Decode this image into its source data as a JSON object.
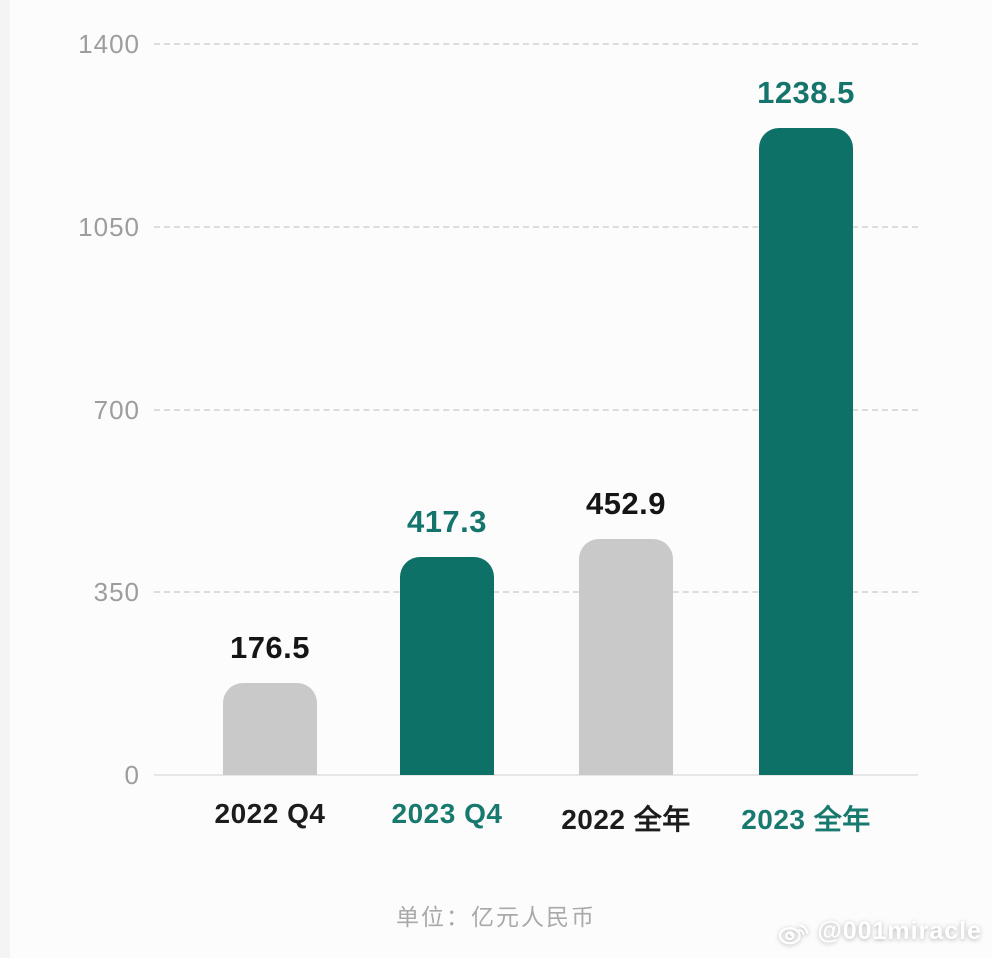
{
  "chart_data": {
    "type": "bar",
    "title": "",
    "categories": [
      "2022 Q4",
      "2023 Q4",
      "2022 全年",
      "2023 全年"
    ],
    "values": [
      176.5,
      417.3,
      452.9,
      1238.5
    ],
    "value_labels": [
      "176.5",
      "417.3",
      "452.9",
      "1238.5"
    ],
    "bar_colors": [
      "#c9c9c9",
      "#0e7168",
      "#c9c9c9",
      "#0e7168"
    ],
    "value_label_colors": [
      "#151515",
      "#15756c",
      "#151515",
      "#15756c"
    ],
    "category_label_colors": [
      "#1c1c1c",
      "#18796f",
      "#1c1c1c",
      "#18796f"
    ],
    "xlabel": "",
    "ylabel": "",
    "ylim": [
      0,
      1400
    ],
    "yticks": [
      "0",
      "350",
      "700",
      "1050",
      "1400"
    ],
    "ytick_values": [
      0,
      350,
      700,
      1050,
      1400
    ],
    "grid": "horizontal dashed, baseline solid",
    "legend": "none",
    "footnote": "单位：亿元人民币"
  },
  "colors": {
    "teal_bar": "#0e7168",
    "gray_bar": "#c9c9c9",
    "axis_text": "#9d9d9d",
    "gridline": "#dcdcdc",
    "footnote_text": "#a9a9a9",
    "background": "#fcfcfc"
  },
  "watermark": {
    "handle": "@001miracle",
    "icon": "weibo-icon"
  }
}
